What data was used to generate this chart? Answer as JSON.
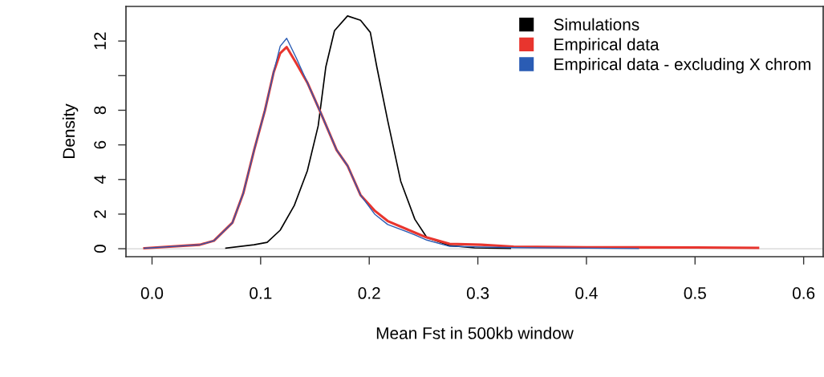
{
  "chart_data": {
    "type": "line",
    "xlabel": "Mean Fst in 500kb window",
    "ylabel": "Density",
    "xlim": [
      -0.024,
      0.618
    ],
    "ylim": [
      -0.46,
      14.0
    ],
    "xticks": [
      {
        "value": 0,
        "label": "0.0"
      },
      0.1,
      0.2,
      0.3,
      0.4,
      0.5,
      0.6
    ],
    "yticks": [
      0,
      2,
      4,
      6,
      8,
      {
        "value": 10,
        "label": null
      },
      12
    ],
    "grid": false,
    "legend": "top right",
    "line_style": "solid",
    "marker": "none",
    "ref_lines": [
      {
        "axis": "y",
        "value": 0,
        "color": "#d3d3d3"
      }
    ],
    "series": [
      {
        "name": "Simulations",
        "color": "#000000",
        "x": [
          0.068,
          0.094,
          0.106,
          0.118,
          0.131,
          0.143,
          0.153,
          0.16,
          0.168,
          0.18,
          0.192,
          0.201,
          0.207,
          0.217,
          0.229,
          0.242,
          0.253,
          0.274,
          0.297,
          0.33
        ],
        "values": [
          0.03,
          0.23,
          0.37,
          1.07,
          2.5,
          4.5,
          7.1,
          10.5,
          12.6,
          13.45,
          13.2,
          12.5,
          10.5,
          7.4,
          3.9,
          1.7,
          0.65,
          0.18,
          0.05,
          0.02
        ]
      },
      {
        "name": "Empirical data",
        "color": "#e8352e",
        "x": [
          -0.007,
          0.044,
          0.057,
          0.074,
          0.084,
          0.094,
          0.104,
          0.112,
          0.118,
          0.124,
          0.133,
          0.143,
          0.155,
          0.17,
          0.18,
          0.192,
          0.205,
          0.217,
          0.242,
          0.253,
          0.274,
          0.303,
          0.333,
          0.4,
          0.448,
          0.5,
          0.558
        ],
        "values": [
          0.03,
          0.23,
          0.46,
          1.5,
          3.2,
          5.7,
          8.0,
          10.2,
          11.3,
          11.65,
          10.7,
          9.6,
          7.9,
          5.7,
          4.8,
          3.1,
          2.2,
          1.6,
          0.93,
          0.65,
          0.28,
          0.23,
          0.12,
          0.08,
          0.08,
          0.07,
          0.05
        ]
      },
      {
        "name": "Empirical data - excluding X chrom",
        "color": "#2a5cb4",
        "x": [
          -0.007,
          0.044,
          0.057,
          0.074,
          0.084,
          0.094,
          0.104,
          0.112,
          0.118,
          0.124,
          0.133,
          0.143,
          0.155,
          0.17,
          0.18,
          0.192,
          0.205,
          0.217,
          0.242,
          0.253,
          0.274,
          0.303,
          0.333,
          0.4,
          0.448
        ],
        "values": [
          0.03,
          0.23,
          0.46,
          1.5,
          3.2,
          5.7,
          8.0,
          10.2,
          11.7,
          12.16,
          11.0,
          9.6,
          7.9,
          5.7,
          4.8,
          3.1,
          2.0,
          1.4,
          0.8,
          0.5,
          0.14,
          0.1,
          0.06,
          0.03,
          0.01
        ]
      }
    ]
  }
}
